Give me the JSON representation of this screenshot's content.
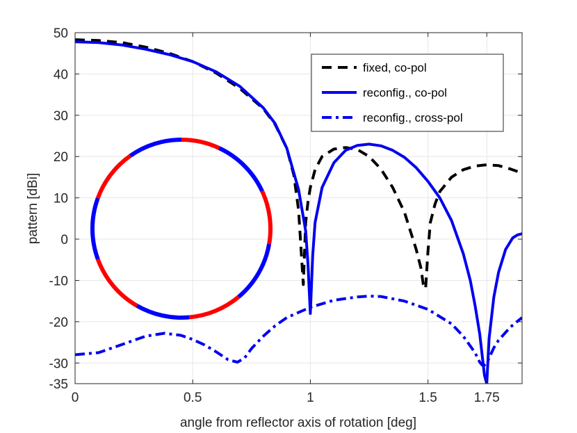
{
  "chart_data": {
    "type": "line",
    "title": "",
    "xlabel": "angle from reflector axis of rotation [deg]",
    "ylabel": "pattern [dBi]",
    "xlim": [
      0,
      1.9
    ],
    "ylim": [
      -35,
      50
    ],
    "xticks": [
      0,
      0.5,
      1,
      1.5,
      1.75
    ],
    "xtick_labels": [
      "0",
      "0.5",
      "1",
      "1.5",
      "1.75"
    ],
    "yticks": [
      50,
      40,
      30,
      20,
      10,
      0,
      -10,
      -20,
      -30,
      -35
    ],
    "ytick_labels": [
      "50",
      "40",
      "30",
      "20",
      "10",
      "0",
      "-10",
      "-20",
      "-30",
      "-35"
    ],
    "grid": true,
    "legend_position": "top-right",
    "series": [
      {
        "name": "fixed, co-pol",
        "color": "#000000",
        "style": "dashed",
        "x": [
          0,
          0.1,
          0.2,
          0.3,
          0.4,
          0.5,
          0.6,
          0.7,
          0.8,
          0.85,
          0.9,
          0.93,
          0.95,
          0.96,
          0.97,
          0.98,
          0.99,
          1.0,
          1.02,
          1.05,
          1.1,
          1.15,
          1.2,
          1.25,
          1.3,
          1.35,
          1.4,
          1.45,
          1.47,
          1.48,
          1.49,
          1.5,
          1.51,
          1.53,
          1.55,
          1.6,
          1.65,
          1.7,
          1.75,
          1.8,
          1.85,
          1.9
        ],
        "y": [
          48.3,
          48.1,
          47.6,
          46.5,
          45.0,
          43.0,
          40.2,
          36.5,
          31.6,
          27.8,
          22.0,
          15.5,
          7.0,
          -2.0,
          -11.0,
          4.0,
          9.0,
          12.5,
          16.8,
          20.0,
          21.8,
          22.2,
          21.7,
          20.0,
          17.0,
          12.5,
          6.5,
          -2.5,
          -7.0,
          -11.0,
          -12.0,
          -3.0,
          4.0,
          8.5,
          11.5,
          15.0,
          16.8,
          17.7,
          18.0,
          17.8,
          17.0,
          16.0
        ]
      },
      {
        "name": "reconfig., co-pol",
        "color": "#0000f0",
        "style": "solid",
        "x": [
          0,
          0.1,
          0.2,
          0.3,
          0.4,
          0.5,
          0.6,
          0.7,
          0.8,
          0.85,
          0.9,
          0.95,
          0.98,
          0.99,
          1.0,
          1.01,
          1.02,
          1.05,
          1.1,
          1.15,
          1.2,
          1.25,
          1.3,
          1.35,
          1.4,
          1.45,
          1.5,
          1.55,
          1.6,
          1.65,
          1.68,
          1.7,
          1.72,
          1.73,
          1.74,
          1.75,
          1.76,
          1.78,
          1.8,
          1.83,
          1.86,
          1.88,
          1.9
        ],
        "y": [
          47.8,
          47.6,
          47.0,
          46.0,
          44.7,
          43.0,
          40.5,
          37.0,
          31.8,
          28.0,
          22.0,
          12.0,
          2.0,
          -6.0,
          -18.0,
          -4.0,
          4.0,
          12.5,
          18.5,
          21.5,
          22.7,
          23.0,
          22.6,
          21.5,
          19.8,
          17.3,
          14.0,
          10.0,
          4.5,
          -3.5,
          -10.0,
          -16.0,
          -23.0,
          -28.0,
          -33.0,
          -35.0,
          -24.0,
          -14.0,
          -8.0,
          -2.5,
          0.3,
          1.0,
          1.3
        ]
      },
      {
        "name": "reconfig., cross-pol",
        "color": "#0000f0",
        "style": "dashdot",
        "x": [
          0,
          0.1,
          0.2,
          0.3,
          0.38,
          0.45,
          0.5,
          0.55,
          0.6,
          0.65,
          0.69,
          0.72,
          0.75,
          0.8,
          0.85,
          0.9,
          1.0,
          1.1,
          1.2,
          1.25,
          1.3,
          1.4,
          1.5,
          1.6,
          1.65,
          1.7,
          1.72,
          1.73,
          1.74,
          1.75,
          1.76,
          1.78,
          1.8,
          1.85,
          1.9
        ],
        "y": [
          -28.0,
          -27.5,
          -25.5,
          -23.5,
          -22.8,
          -23.3,
          -24.3,
          -25.6,
          -27.3,
          -29.2,
          -29.8,
          -28.8,
          -26.5,
          -23.5,
          -21.0,
          -19.0,
          -16.5,
          -14.8,
          -14.0,
          -13.8,
          -13.9,
          -15.0,
          -17.0,
          -20.5,
          -23.5,
          -27.5,
          -29.8,
          -30.5,
          -30.5,
          -30.0,
          -28.8,
          -26.3,
          -24.5,
          -21.3,
          -19.0
        ]
      }
    ],
    "inset": {
      "description_colors": [
        "#ff0000",
        "#0000ff"
      ],
      "segments": [
        {
          "start_deg": -90,
          "end_deg": -65,
          "color": "#ff0000"
        },
        {
          "start_deg": -65,
          "end_deg": -25,
          "color": "#0000ff"
        },
        {
          "start_deg": -25,
          "end_deg": 10,
          "color": "#ff0000"
        },
        {
          "start_deg": 10,
          "end_deg": 50,
          "color": "#0000ff"
        },
        {
          "start_deg": 50,
          "end_deg": 85,
          "color": "#ff0000"
        },
        {
          "start_deg": 85,
          "end_deg": 120,
          "color": "#0000ff"
        },
        {
          "start_deg": 120,
          "end_deg": 160,
          "color": "#ff0000"
        },
        {
          "start_deg": 160,
          "end_deg": 200,
          "color": "#0000ff"
        },
        {
          "start_deg": 200,
          "end_deg": 235,
          "color": "#ff0000"
        },
        {
          "start_deg": 235,
          "end_deg": 270,
          "color": "#0000ff"
        }
      ]
    }
  }
}
